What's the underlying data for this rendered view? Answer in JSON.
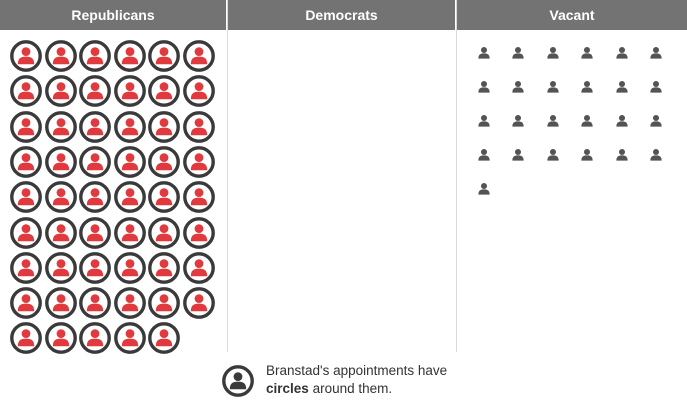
{
  "columns": [
    {
      "header": "Republicans",
      "count": 53,
      "circled": 53,
      "icon": "person-icon",
      "color": "#e03a3e"
    },
    {
      "header": "Democrats",
      "count": 0,
      "circled": 0,
      "icon": "person-icon",
      "color": "#2e6fb5"
    },
    {
      "header": "Vacant",
      "count": 25,
      "circled": 0,
      "icon": "person-icon",
      "color": "#545454"
    }
  ],
  "legend": {
    "icon": "circled-person-icon",
    "text_before": "Branstad's appointments have",
    "text_bold": "circles",
    "text_after": "around them."
  },
  "colors": {
    "header_bg": "#737373",
    "ring": "#3a3a3a",
    "vacant": "#545454",
    "republican": "#e03a3e"
  }
}
